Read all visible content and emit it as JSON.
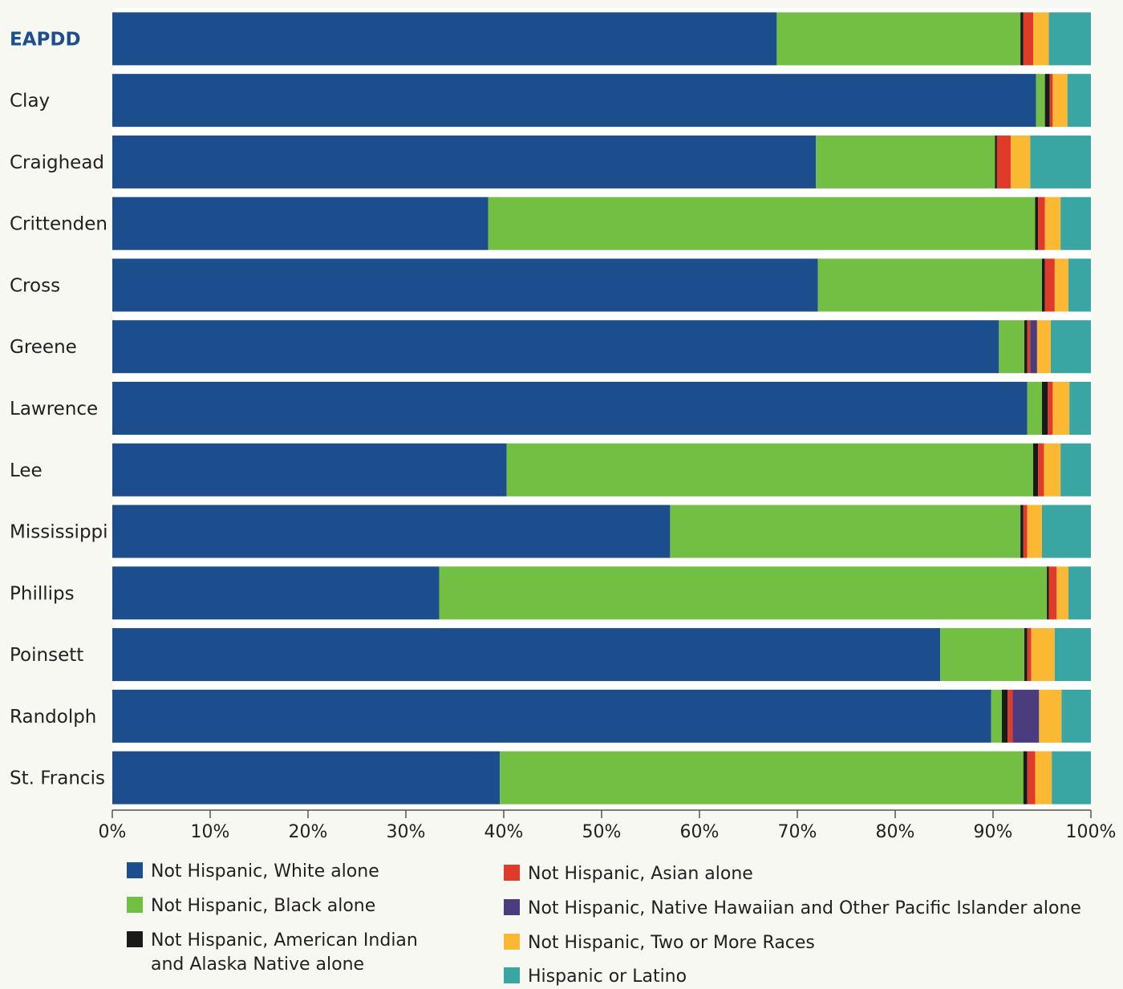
{
  "chart_data": {
    "type": "bar",
    "orientation": "horizontal",
    "stacked": true,
    "normalized": true,
    "categories": [
      "EAPDD",
      "Clay",
      "Craighead",
      "Crittenden",
      "Cross",
      "Greene",
      "Lawrence",
      "Lee",
      "Mississippi",
      "Phillips",
      "Poinsett",
      "Randolph",
      "St. Francis"
    ],
    "highlight_category": "EAPDD",
    "highlight_color": "#1d4e8f",
    "series": [
      {
        "name": "Not Hispanic, White alone",
        "color": "#1c4d8c",
        "values": [
          67.9,
          94.4,
          71.9,
          38.4,
          72.1,
          90.6,
          93.5,
          40.3,
          57.0,
          33.4,
          84.6,
          89.8,
          39.6
        ]
      },
      {
        "name": "Not Hispanic, Black alone",
        "color": "#72bf44",
        "values": [
          24.9,
          0.9,
          18.3,
          55.9,
          22.9,
          2.6,
          1.5,
          53.8,
          35.8,
          62.1,
          8.6,
          1.1,
          53.5
        ]
      },
      {
        "name": "Not Hispanic, American Indian and Alaska Native alone",
        "color": "#1a1a1a",
        "values": [
          0.3,
          0.5,
          0.2,
          0.3,
          0.3,
          0.3,
          0.6,
          0.5,
          0.3,
          0.2,
          0.3,
          0.6,
          0.4
        ]
      },
      {
        "name": "Not Hispanic, Asian alone",
        "color": "#e03a2a",
        "values": [
          1.0,
          0.3,
          1.4,
          0.7,
          1.0,
          0.3,
          0.5,
          0.6,
          0.4,
          0.8,
          0.4,
          0.5,
          0.8
        ]
      },
      {
        "name": "Not Hispanic, Native Hawaiian and Other Pacific Islander alone",
        "color": "#4a3c7e",
        "values": [
          0,
          0,
          0,
          0,
          0,
          0.7,
          0,
          0,
          0,
          0,
          0,
          2.7,
          0
        ]
      },
      {
        "name": "Not Hispanic, Two or More Races",
        "color": "#fbb833",
        "values": [
          1.6,
          1.5,
          2.0,
          1.6,
          1.4,
          1.4,
          1.7,
          1.7,
          1.5,
          1.2,
          2.4,
          2.3,
          1.7
        ]
      },
      {
        "name": "Hispanic or Latino",
        "color": "#3aa6a3",
        "values": [
          4.3,
          2.4,
          6.2,
          3.1,
          2.3,
          4.1,
          2.2,
          3.1,
          5.0,
          2.3,
          3.7,
          3.0,
          4.0
        ]
      }
    ],
    "xlim": [
      0,
      100
    ],
    "xticks": [
      "0%",
      "10%",
      "20%",
      "30%",
      "40%",
      "50%",
      "60%",
      "70%",
      "80%",
      "90%",
      "100%"
    ],
    "legend_position": "bottom",
    "grid": false
  }
}
